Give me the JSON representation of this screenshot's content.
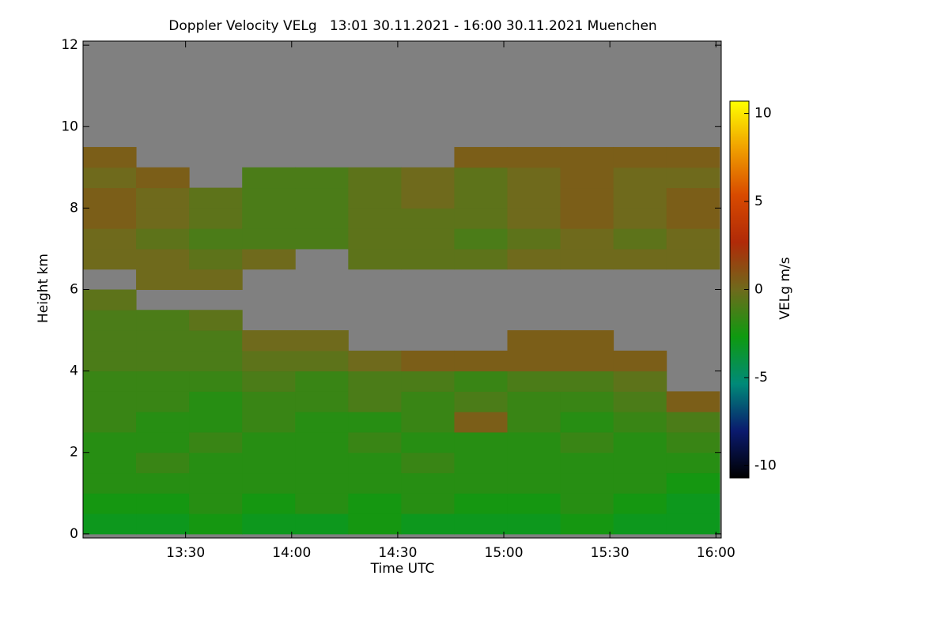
{
  "chart_data": {
    "type": "heatmap",
    "title": "Doppler Velocity VELg   13:01 30.11.2021 - 16:00 30.11.2021 Muenchen",
    "x_label": "Time UTC",
    "y_label": "Height km",
    "colorbar_label": "VELg m/s",
    "xlim": [
      781,
      961.5
    ],
    "ylim": [
      -0.1,
      12.1
    ],
    "xticks": [
      {
        "value": 810,
        "label": "13:30"
      },
      {
        "value": 840,
        "label": "14:00"
      },
      {
        "value": 870,
        "label": "14:30"
      },
      {
        "value": 900,
        "label": "15:00"
      },
      {
        "value": 930,
        "label": "15:30"
      },
      {
        "value": 960,
        "label": "16:00"
      }
    ],
    "yticks": [
      0,
      2,
      4,
      6,
      8,
      10,
      12
    ],
    "zlim": [
      -10.7,
      10.7
    ],
    "zticks": [
      -10,
      -5,
      0,
      5,
      10
    ],
    "colormap": [
      "#000000",
      "#0a1a6e",
      "#008a78",
      "#0f9a10",
      "#6f6a1c",
      "#b02a08",
      "#d84a00",
      "#f0a000",
      "#ffff00"
    ],
    "missing_color": "#808080",
    "xbins": [
      781,
      796,
      811,
      826,
      841,
      856,
      871,
      886,
      901,
      916,
      931,
      946,
      961
    ],
    "ybins": [
      0,
      0.5,
      1,
      1.5,
      2,
      2.5,
      3,
      3.5,
      4,
      4.5,
      5,
      5.5,
      6,
      6.5,
      7,
      7.5,
      8,
      8.5,
      9,
      9.5,
      10,
      10.5,
      11,
      11.5,
      12
    ],
    "values": [
      [
        -3,
        -3,
        -2.5,
        -3,
        -3,
        -2.5,
        -3,
        -3,
        -3,
        -2.5,
        -3,
        -3
      ],
      [
        -2.5,
        -2.5,
        -2,
        -2.5,
        -2,
        -2.5,
        -2,
        -2.5,
        -2.5,
        -2,
        -2.5,
        -3
      ],
      [
        -2,
        -2,
        -2,
        -2,
        -2,
        -2,
        -2,
        -2,
        -2,
        -2,
        -2,
        -2.5
      ],
      [
        -2,
        -1.5,
        -2,
        -2,
        -2,
        -2,
        -1.5,
        -2,
        -2,
        -2,
        -2,
        -2
      ],
      [
        -2,
        -2,
        -1.5,
        -2,
        -2,
        -1.5,
        -2,
        -2,
        -2,
        -1.5,
        -2,
        -1.5
      ],
      [
        -1.5,
        -2,
        -2,
        -1.5,
        -2,
        -2,
        -1.5,
        0.5,
        -1.5,
        -2,
        -1.5,
        -1
      ],
      [
        -1.5,
        -1.5,
        -2,
        -1.5,
        -1.5,
        -1,
        -1.5,
        -1,
        -1.5,
        -1.5,
        -1,
        0.5
      ],
      [
        -1.5,
        -1.5,
        -1.5,
        -1,
        -1.5,
        -1,
        -1,
        -1.5,
        -1,
        -1,
        -0.5,
        null
      ],
      [
        -1,
        -1,
        -1,
        -0.5,
        -0.5,
        0,
        0.5,
        0.5,
        0.5,
        0.5,
        0.5,
        null
      ],
      [
        -1,
        -1,
        -1,
        0,
        0,
        null,
        null,
        null,
        0.5,
        0.5,
        null,
        null
      ],
      [
        -1,
        -1,
        -0.5,
        null,
        null,
        null,
        null,
        null,
        null,
        null,
        null,
        null
      ],
      [
        -0.5,
        null,
        null,
        null,
        null,
        null,
        null,
        null,
        null,
        null,
        null,
        null
      ],
      [
        null,
        0,
        0,
        null,
        null,
        null,
        null,
        null,
        null,
        null,
        null,
        null
      ],
      [
        0,
        0,
        -0.5,
        0,
        null,
        -0.5,
        -0.5,
        -0.5,
        0,
        0,
        0,
        0
      ],
      [
        0,
        -0.5,
        -1,
        -1,
        -1,
        -0.5,
        -0.5,
        -1,
        -0.5,
        0,
        -0.5,
        0
      ],
      [
        0.5,
        0,
        -0.5,
        -1,
        -1,
        -0.5,
        -0.5,
        -0.5,
        0,
        0.5,
        0,
        0.5
      ],
      [
        0.5,
        0,
        -0.5,
        -1,
        -1,
        -0.5,
        0,
        -0.5,
        0,
        0.5,
        0,
        0.5
      ],
      [
        0,
        0.5,
        null,
        -1,
        -1,
        -0.5,
        0,
        -0.5,
        0,
        0.5,
        0,
        0
      ],
      [
        0.5,
        null,
        null,
        null,
        null,
        null,
        null,
        0.5,
        0.5,
        0.5,
        0.5,
        0.5
      ],
      [
        null,
        null,
        null,
        null,
        null,
        null,
        null,
        null,
        null,
        null,
        null,
        null
      ],
      [
        null,
        null,
        null,
        null,
        null,
        null,
        null,
        null,
        null,
        null,
        null,
        null
      ],
      [
        null,
        null,
        null,
        null,
        null,
        null,
        null,
        null,
        null,
        null,
        null,
        null
      ],
      [
        null,
        null,
        null,
        null,
        null,
        null,
        null,
        null,
        null,
        null,
        null,
        null
      ],
      [
        null,
        null,
        null,
        null,
        null,
        null,
        null,
        null,
        null,
        null,
        null,
        null
      ]
    ]
  }
}
